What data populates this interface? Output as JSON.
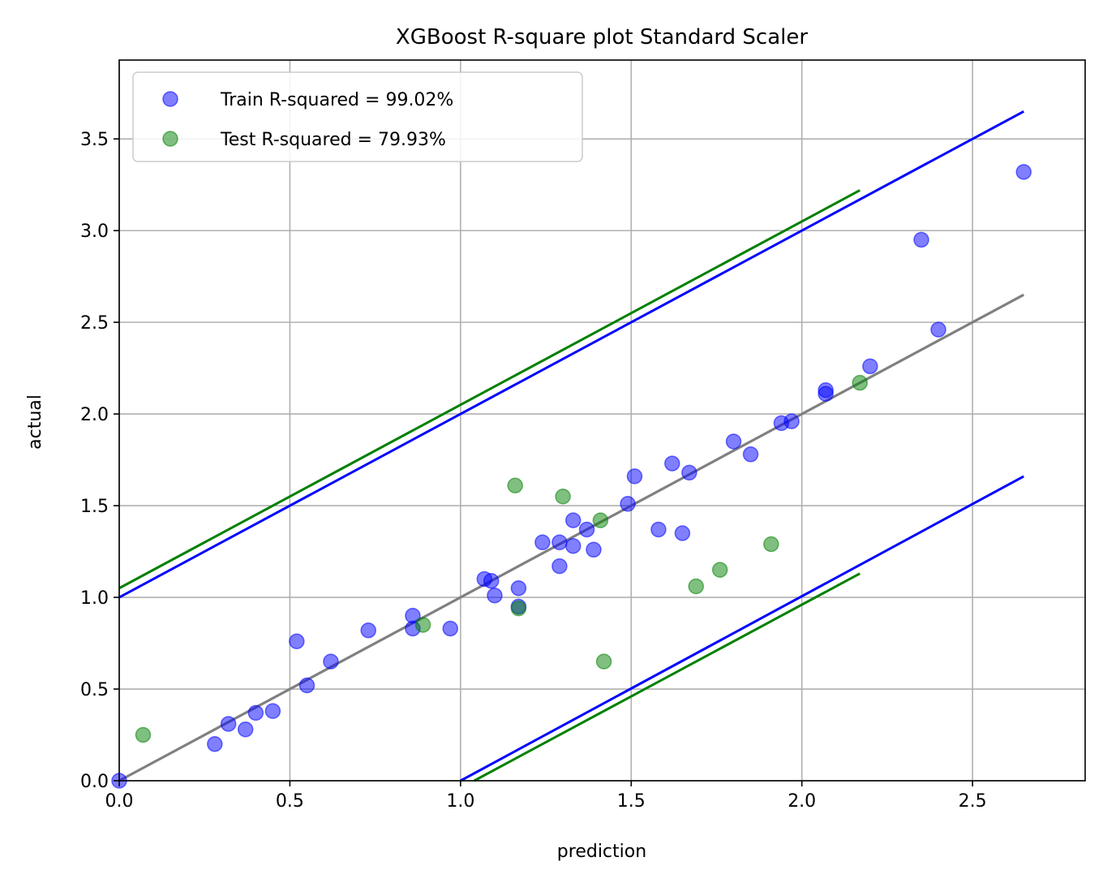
{
  "chart_data": {
    "type": "scatter",
    "title": "XGBoost R-square plot Standard Scaler",
    "xlabel": "prediction",
    "ylabel": "actual",
    "xlim": [
      0,
      2.83
    ],
    "ylim": [
      0,
      3.93
    ],
    "xticks": [
      "0.0",
      "0.5",
      "1.0",
      "1.5",
      "2.0",
      "2.5"
    ],
    "xtick_values": [
      0,
      0.5,
      1.0,
      1.5,
      2.0,
      2.5
    ],
    "yticks": [
      "0.0",
      "0.5",
      "1.0",
      "1.5",
      "2.0",
      "2.5",
      "3.0",
      "3.5"
    ],
    "ytick_values": [
      0,
      0.5,
      1.0,
      1.5,
      2.0,
      2.5,
      3.0,
      3.5
    ],
    "grid": true,
    "legend_position": "upper-left",
    "colors": {
      "train": "#0000ff",
      "test": "#008000",
      "identity": "#808080"
    },
    "series": [
      {
        "name": "Train R-squared = 99.02%",
        "color": "#0000ff",
        "points": [
          [
            0.0,
            0.0
          ],
          [
            0.28,
            0.2
          ],
          [
            0.32,
            0.31
          ],
          [
            0.37,
            0.28
          ],
          [
            0.4,
            0.37
          ],
          [
            0.45,
            0.38
          ],
          [
            0.52,
            0.76
          ],
          [
            0.55,
            0.52
          ],
          [
            0.62,
            0.65
          ],
          [
            0.73,
            0.82
          ],
          [
            0.86,
            0.9
          ],
          [
            0.86,
            0.83
          ],
          [
            0.97,
            0.83
          ],
          [
            1.07,
            1.1
          ],
          [
            1.09,
            1.09
          ],
          [
            1.1,
            1.01
          ],
          [
            1.17,
            1.05
          ],
          [
            1.17,
            0.95
          ],
          [
            1.24,
            1.3
          ],
          [
            1.29,
            1.3
          ],
          [
            1.29,
            1.17
          ],
          [
            1.33,
            1.42
          ],
          [
            1.33,
            1.28
          ],
          [
            1.37,
            1.37
          ],
          [
            1.39,
            1.26
          ],
          [
            1.49,
            1.51
          ],
          [
            1.51,
            1.66
          ],
          [
            1.58,
            1.37
          ],
          [
            1.62,
            1.73
          ],
          [
            1.65,
            1.35
          ],
          [
            1.67,
            1.68
          ],
          [
            1.8,
            1.85
          ],
          [
            1.85,
            1.78
          ],
          [
            1.94,
            1.95
          ],
          [
            1.97,
            1.96
          ],
          [
            2.07,
            2.13
          ],
          [
            2.07,
            2.11
          ],
          [
            2.2,
            2.26
          ],
          [
            2.35,
            2.95
          ],
          [
            2.4,
            2.46
          ],
          [
            2.65,
            3.32
          ]
        ]
      },
      {
        "name": "Test R-squared = 79.93%",
        "color": "#008000",
        "points": [
          [
            0.07,
            0.25
          ],
          [
            0.89,
            0.85
          ],
          [
            1.16,
            1.61
          ],
          [
            1.17,
            0.94
          ],
          [
            1.3,
            1.55
          ],
          [
            1.41,
            1.42
          ],
          [
            1.42,
            0.65
          ],
          [
            1.69,
            1.06
          ],
          [
            1.76,
            1.15
          ],
          [
            1.91,
            1.29
          ],
          [
            2.17,
            2.17
          ]
        ]
      }
    ],
    "lines": [
      {
        "role": "identity",
        "color": "#808080",
        "x": [
          0,
          2.65
        ],
        "y": [
          0,
          2.65
        ]
      },
      {
        "role": "train-upper",
        "color": "#0000ff",
        "x": [
          0,
          2.65
        ],
        "y": [
          1.0,
          3.65
        ]
      },
      {
        "role": "train-lower",
        "color": "#0000ff",
        "x": [
          1.0,
          2.65
        ],
        "y": [
          0,
          1.66
        ]
      },
      {
        "role": "test-upper",
        "color": "#008000",
        "x": [
          0,
          2.17
        ],
        "y": [
          1.05,
          3.22
        ]
      },
      {
        "role": "test-lower",
        "color": "#008000",
        "x": [
          1.04,
          2.17
        ],
        "y": [
          0,
          1.13
        ]
      }
    ]
  }
}
